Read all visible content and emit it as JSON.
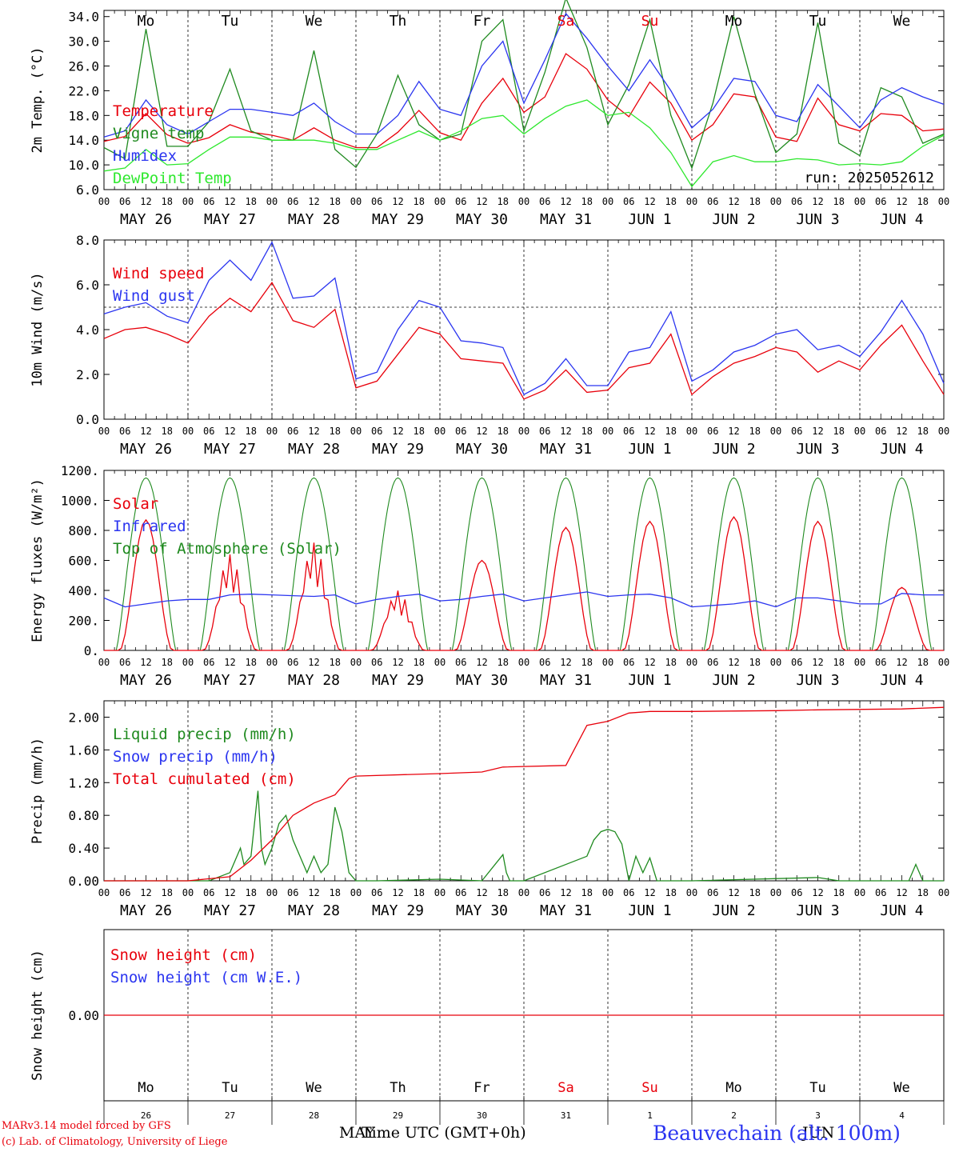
{
  "run_label": "run: 2025052612",
  "day_letters": [
    "Mo",
    "Tu",
    "We",
    "Th",
    "Fr",
    "Sa",
    "Su",
    "Mo",
    "Tu",
    "We"
  ],
  "weekend_flags": [
    false,
    false,
    false,
    false,
    false,
    true,
    true,
    false,
    false,
    false
  ],
  "day_dates": [
    "MAY 26",
    "MAY 27",
    "MAY 28",
    "MAY 29",
    "MAY 30",
    "MAY 31",
    "JUN  1",
    "JUN  2",
    "JUN  3",
    "JUN  4"
  ],
  "day_numbers": [
    "26",
    "27",
    "28",
    "29",
    "30",
    "31",
    "1",
    "2",
    "3",
    "4"
  ],
  "hour_ticks": [
    "00",
    "06",
    "12",
    "18"
  ],
  "hour_end": "00",
  "colors": {
    "red": "#e8000b",
    "green": "#1f8a1f",
    "blue": "#2b35f0",
    "lightgreen": "#2ee82e",
    "black": "#000000"
  },
  "footer": {
    "credit_line1": "MARv3.14 model forced by GFS",
    "credit_line2": "(c) Lab. of Climatology, University of Liege",
    "axis_title": "Time UTC (GMT+0h)",
    "month_left": "MAY",
    "month_right": "JUN",
    "station": "Beauvechain (alt. 100m)"
  },
  "chart_data": [
    {
      "type": "line",
      "ylabel": "2m Temp. (°C)",
      "ylim": [
        6,
        35
      ],
      "yticks": [
        "34.0",
        "30.0",
        "26.0",
        "22.0",
        "18.0",
        "14.0",
        "10.0",
        "6.0"
      ],
      "ytick_values": [
        34,
        30,
        26,
        22,
        18,
        14,
        10,
        6
      ],
      "x_unit": "hours since MAY 26 00 UTC",
      "legend": [
        "Temperature",
        "Vigne temp",
        "Humidex",
        "DewPoint Temp"
      ],
      "series": [
        {
          "name": "Temperature",
          "color": "red",
          "x": [
            0,
            6,
            12,
            18,
            24,
            30,
            36,
            42,
            48,
            54,
            60,
            66,
            72,
            78,
            84,
            90,
            96,
            102,
            108,
            114,
            120,
            126,
            132,
            138,
            144,
            150,
            156,
            162,
            168,
            174,
            180,
            186,
            192,
            198,
            204,
            210,
            216,
            222,
            228,
            234,
            240
          ],
          "y": [
            13.8,
            14.6,
            18.3,
            14.9,
            13.5,
            14.4,
            16.5,
            15.3,
            14.8,
            14.0,
            16.0,
            14.0,
            12.8,
            12.8,
            15.3,
            18.8,
            15.2,
            14.0,
            20.0,
            24.0,
            18.5,
            21.0,
            28.0,
            25.5,
            20.5,
            17.8,
            23.4,
            20.0,
            14.0,
            16.5,
            21.5,
            21.0,
            14.5,
            13.8,
            20.8,
            16.5,
            15.5,
            18.3,
            18.0,
            15.5,
            15.8
          ]
        },
        {
          "name": "Vigne temp",
          "color": "green",
          "x": [
            0,
            6,
            12,
            18,
            24,
            30,
            36,
            42,
            48,
            54,
            60,
            66,
            72,
            78,
            84,
            90,
            96,
            102,
            108,
            114,
            120,
            126,
            132,
            138,
            144,
            150,
            156,
            162,
            168,
            174,
            180,
            186,
            192,
            198,
            204,
            210,
            216,
            222,
            228,
            234,
            240
          ],
          "y": [
            12.8,
            11.0,
            32.0,
            13.0,
            13.0,
            17.0,
            25.5,
            15.5,
            14.0,
            14.0,
            28.5,
            12.5,
            9.6,
            15.0,
            24.5,
            16.5,
            14.0,
            15.0,
            30.0,
            33.5,
            15.5,
            25.0,
            37.0,
            29.0,
            16.5,
            23.0,
            33.5,
            18.0,
            9.5,
            20.0,
            34.0,
            21.5,
            12.0,
            15.0,
            33.0,
            13.5,
            11.5,
            22.5,
            21.0,
            13.5,
            15.0
          ]
        },
        {
          "name": "Humidex",
          "color": "blue",
          "x": [
            0,
            6,
            12,
            18,
            24,
            30,
            36,
            42,
            48,
            54,
            60,
            66,
            72,
            78,
            84,
            90,
            96,
            102,
            108,
            114,
            120,
            126,
            132,
            138,
            144,
            150,
            156,
            162,
            168,
            174,
            180,
            186,
            192,
            198,
            204,
            210,
            216,
            222,
            228,
            234,
            240
          ],
          "y": [
            14.5,
            15.5,
            20.5,
            16.5,
            15.0,
            17.0,
            19.0,
            19.0,
            18.5,
            18.0,
            20.0,
            17.0,
            15.0,
            15.0,
            18.0,
            23.5,
            19.0,
            18.0,
            26.0,
            30.0,
            20.0,
            27.0,
            34.5,
            30.5,
            26.0,
            22.0,
            27.0,
            22.0,
            16.0,
            19.0,
            24.0,
            23.5,
            18.0,
            17.0,
            23.0,
            19.5,
            16.0,
            20.5,
            22.5,
            21.0,
            19.8
          ]
        },
        {
          "name": "DewPoint Temp",
          "color": "lightgreen",
          "x": [
            0,
            6,
            12,
            18,
            24,
            30,
            36,
            42,
            48,
            54,
            60,
            66,
            72,
            78,
            84,
            90,
            96,
            102,
            108,
            114,
            120,
            126,
            132,
            138,
            144,
            150,
            156,
            162,
            168,
            174,
            180,
            186,
            192,
            198,
            204,
            210,
            216,
            222,
            228,
            234,
            240
          ],
          "y": [
            9.0,
            9.5,
            12.5,
            10.0,
            10.2,
            12.5,
            14.5,
            14.5,
            14.0,
            14.0,
            14.0,
            13.5,
            12.5,
            12.5,
            14.0,
            15.5,
            14.0,
            15.5,
            17.5,
            18.0,
            15.0,
            17.5,
            19.5,
            20.5,
            18.0,
            18.5,
            16.0,
            12.0,
            6.5,
            10.5,
            11.5,
            10.5,
            10.5,
            11.0,
            10.8,
            10.0,
            10.2,
            10.0,
            10.5,
            13.0,
            14.8
          ]
        }
      ]
    },
    {
      "type": "line",
      "ylabel": "10m Wind (m/s)",
      "ylim": [
        0,
        8
      ],
      "yticks": [
        "8.0",
        "6.0",
        "4.0",
        "2.0",
        "0.0"
      ],
      "ytick_values": [
        8,
        6,
        4,
        2,
        0
      ],
      "reference_line": 5.0,
      "x_unit": "hours since MAY 26 00 UTC",
      "legend": [
        "Wind speed",
        "Wind gust"
      ],
      "series": [
        {
          "name": "Wind speed",
          "color": "red",
          "x": [
            0,
            6,
            12,
            18,
            24,
            30,
            36,
            42,
            48,
            54,
            60,
            66,
            72,
            78,
            84,
            90,
            96,
            102,
            108,
            114,
            120,
            126,
            132,
            138,
            144,
            150,
            156,
            162,
            168,
            174,
            180,
            186,
            192,
            198,
            204,
            210,
            216,
            222,
            228,
            234,
            240
          ],
          "y": [
            3.6,
            4.0,
            4.1,
            3.8,
            3.4,
            4.6,
            5.4,
            4.8,
            6.1,
            4.4,
            4.1,
            4.9,
            1.4,
            1.7,
            2.9,
            4.1,
            3.8,
            2.7,
            2.6,
            2.5,
            0.9,
            1.3,
            2.2,
            1.2,
            1.3,
            2.3,
            2.5,
            3.8,
            1.1,
            1.9,
            2.5,
            2.8,
            3.2,
            3.0,
            2.1,
            2.6,
            2.2,
            3.3,
            4.2,
            2.6,
            1.1
          ]
        },
        {
          "name": "Wind gust",
          "color": "blue",
          "x": [
            0,
            6,
            12,
            18,
            24,
            30,
            36,
            42,
            48,
            54,
            60,
            66,
            72,
            78,
            84,
            90,
            96,
            102,
            108,
            114,
            120,
            126,
            132,
            138,
            144,
            150,
            156,
            162,
            168,
            174,
            180,
            186,
            192,
            198,
            204,
            210,
            216,
            222,
            228,
            234,
            240
          ],
          "y": [
            4.7,
            5.0,
            5.2,
            4.6,
            4.3,
            6.2,
            7.1,
            6.2,
            7.9,
            5.4,
            5.5,
            6.3,
            1.8,
            2.1,
            4.0,
            5.3,
            5.0,
            3.5,
            3.4,
            3.2,
            1.1,
            1.6,
            2.7,
            1.5,
            1.5,
            3.0,
            3.2,
            4.8,
            1.7,
            2.2,
            3.0,
            3.3,
            3.8,
            4.0,
            3.1,
            3.3,
            2.8,
            3.9,
            5.3,
            3.8,
            1.6
          ]
        }
      ]
    },
    {
      "type": "line",
      "ylabel": "Energy fluxes (W/m²)",
      "ylim": [
        0,
        1200
      ],
      "yticks": [
        "1200.",
        "1000.",
        "800.",
        "600.",
        "400.",
        "200.",
        "0."
      ],
      "ytick_values": [
        1200,
        1000,
        800,
        600,
        400,
        200,
        0
      ],
      "x_unit": "hours since MAY 26 00 UTC",
      "legend": [
        "Solar",
        "Infrared",
        "Top of Atmosphere (Solar)"
      ],
      "toa_peak": 1150,
      "solar_daily_peak": [
        870,
        640,
        720,
        400,
        600,
        820,
        860,
        890,
        860,
        420
      ],
      "series": [
        {
          "name": "Infrared",
          "color": "blue",
          "x": [
            0,
            6,
            12,
            18,
            24,
            30,
            36,
            42,
            48,
            54,
            60,
            66,
            72,
            78,
            84,
            90,
            96,
            102,
            108,
            114,
            120,
            126,
            132,
            138,
            144,
            150,
            156,
            162,
            168,
            174,
            180,
            186,
            192,
            198,
            204,
            210,
            216,
            222,
            228,
            234,
            240
          ],
          "y": [
            350,
            290,
            310,
            330,
            340,
            340,
            370,
            375,
            370,
            365,
            360,
            370,
            310,
            340,
            360,
            375,
            330,
            340,
            360,
            375,
            330,
            350,
            370,
            390,
            360,
            370,
            375,
            350,
            290,
            300,
            310,
            330,
            290,
            350,
            350,
            330,
            310,
            310,
            380,
            370,
            370
          ]
        }
      ]
    },
    {
      "type": "line",
      "ylabel": "Precip (mm/h)",
      "ylim": [
        0,
        2.2
      ],
      "yticks": [
        "2.00",
        "1.60",
        "1.20",
        "0.80",
        "0.40",
        "0.00"
      ],
      "ytick_values": [
        2.0,
        1.6,
        1.2,
        0.8,
        0.4,
        0.0
      ],
      "x_unit": "hours since MAY 26 00 UTC",
      "legend": [
        "Liquid precip (mm/h)",
        "Snow precip (mm/h)",
        "Total cumulated (cm)"
      ],
      "series": [
        {
          "name": "Liquid precip (mm/h)",
          "color": "green",
          "x": [
            0,
            30,
            36,
            39,
            40,
            42,
            44,
            45,
            46,
            47,
            48,
            50,
            52,
            54,
            56,
            58,
            60,
            62,
            64,
            66,
            68,
            70,
            72,
            78,
            96,
            108,
            114,
            115,
            116,
            118,
            120,
            138,
            140,
            141,
            142,
            144,
            146,
            148,
            150,
            152,
            154,
            156,
            158,
            160,
            168,
            204,
            210,
            216,
            230,
            232,
            234,
            240
          ],
          "y": [
            0,
            0,
            0.1,
            0.4,
            0.2,
            0.3,
            1.1,
            0.4,
            0.2,
            0.3,
            0.4,
            0.7,
            0.8,
            0.5,
            0.3,
            0.1,
            0.3,
            0.1,
            0.2,
            0.9,
            0.6,
            0.1,
            0.0,
            0.0,
            0.02,
            0.0,
            0.32,
            0.1,
            0.0,
            0.0,
            0.0,
            0.3,
            0.5,
            0.55,
            0.6,
            0.63,
            0.6,
            0.45,
            0.0,
            0.3,
            0.1,
            0.28,
            0.0,
            0.0,
            0.0,
            0.04,
            0.0,
            0.0,
            0.0,
            0.2,
            0.0,
            0.0
          ]
        },
        {
          "name": "Total cumulated (cm)",
          "color": "red",
          "x": [
            0,
            24,
            36,
            42,
            48,
            54,
            60,
            66,
            70,
            72,
            96,
            108,
            114,
            132,
            138,
            144,
            150,
            156,
            162,
            168,
            192,
            204,
            228,
            240
          ],
          "y": [
            0,
            0,
            0.05,
            0.25,
            0.5,
            0.8,
            0.95,
            1.05,
            1.25,
            1.28,
            1.31,
            1.33,
            1.39,
            1.41,
            1.9,
            1.95,
            2.05,
            2.07,
            2.07,
            2.07,
            2.08,
            2.09,
            2.1,
            2.12
          ]
        }
      ]
    },
    {
      "type": "line",
      "ylabel": "Snow height (cm)",
      "ylim": [
        -1,
        1
      ],
      "yticks": [
        "0.00"
      ],
      "ytick_values": [
        0
      ],
      "x_unit": "hours since MAY 26 00 UTC",
      "legend": [
        "Snow height (cm)",
        "Snow height (cm W.E.)"
      ],
      "series": [
        {
          "name": "Snow height (cm)",
          "color": "red",
          "x": [
            0,
            240
          ],
          "y": [
            0,
            0
          ]
        }
      ]
    }
  ]
}
